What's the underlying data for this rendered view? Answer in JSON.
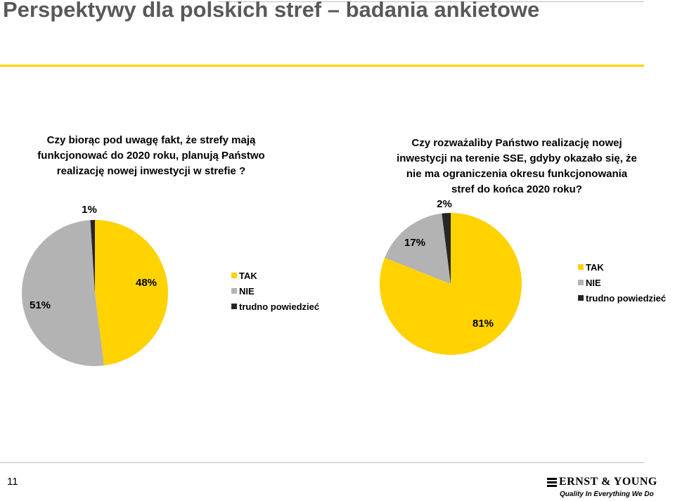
{
  "page": {
    "title": "Perspektywy dla polskich stref – badania ankietowe",
    "page_number": "11"
  },
  "logo": {
    "name": "ERNST & YOUNG",
    "tagline": "Quality In Everything We Do"
  },
  "colors": {
    "tak": "#ffd200",
    "nie": "#b3b3b3",
    "trudno": "#262626",
    "accent": "#ffd200"
  },
  "chart_data": [
    {
      "type": "pie",
      "title": "Czy biorąc pod uwagę fakt, że strefy mają\nfunkcjonować do 2020 roku, planują Państwo\nrealizację nowej inwestycji w strefie ?",
      "categories": [
        "TAK",
        "NIE",
        "trudno powiedzieć"
      ],
      "values": [
        48,
        51,
        1
      ],
      "data_labels": [
        "48%",
        "51%",
        "1%"
      ],
      "start_angle_deg": 0,
      "direction": "clockwise",
      "legend_position": "right"
    },
    {
      "type": "pie",
      "title": "Czy rozważaliby Państwo realizację nowej\ninwestycji na terenie SSE, gdyby okazało się, że\nnie ma ograniczenia okresu funkcjonowania\nstref do końca 2020 roku?",
      "categories": [
        "TAK",
        "NIE",
        "trudno powiedzieć"
      ],
      "values": [
        81,
        17,
        2
      ],
      "data_labels": [
        "81%",
        "17%",
        "2%"
      ],
      "start_angle_deg": 0,
      "direction": "clockwise",
      "legend_position": "right"
    }
  ]
}
